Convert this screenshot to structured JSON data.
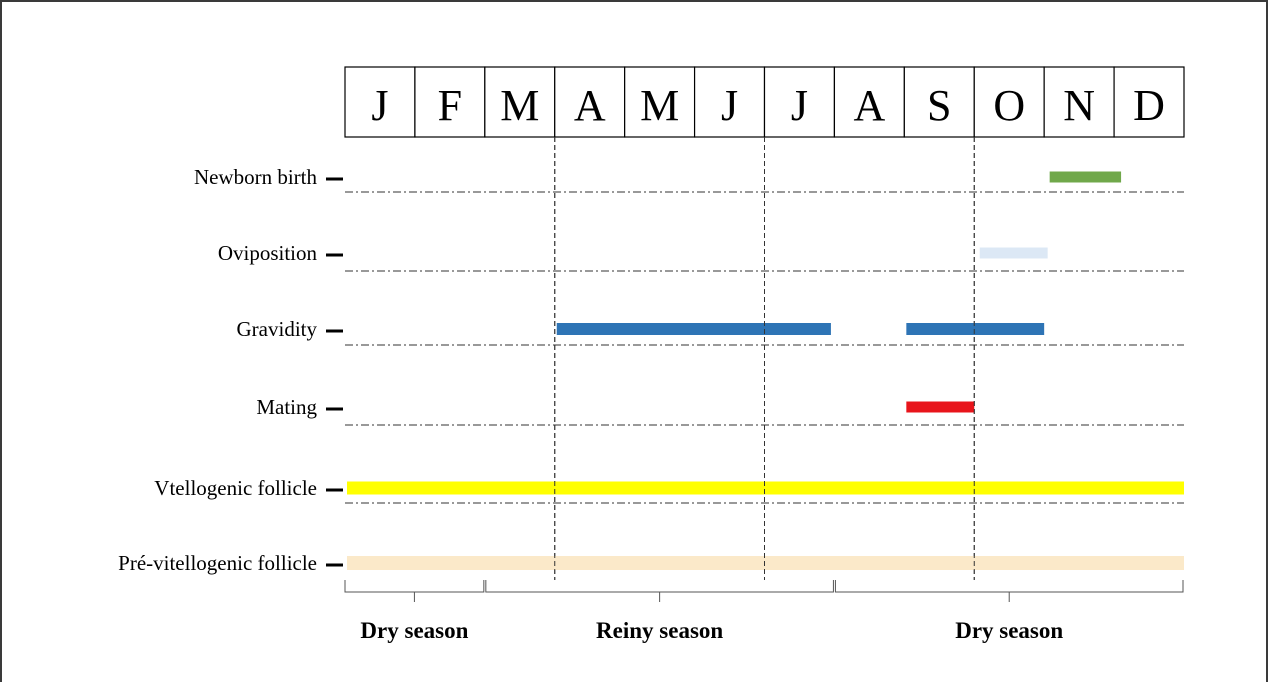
{
  "chart_data": {
    "type": "gantt",
    "months": [
      "J",
      "F",
      "M",
      "A",
      "M",
      "J",
      "J",
      "A",
      "S",
      "O",
      "N",
      "D"
    ],
    "rows": [
      {
        "label": "Newborn birth",
        "bars": [
          {
            "start": 10.05,
            "end": 11.1,
            "color": "#70a84a"
          }
        ]
      },
      {
        "label": "Oviposition",
        "bars": [
          {
            "start": 9.05,
            "end": 10.05,
            "color": "#dce8f5"
          }
        ]
      },
      {
        "label": "Gravidity",
        "bars": [
          {
            "start": 3.0,
            "end": 6.95,
            "color": "#2e74b5"
          },
          {
            "start": 8.0,
            "end": 10.0,
            "color": "#2e74b5"
          }
        ]
      },
      {
        "label": "Mating",
        "bars": [
          {
            "start": 8.0,
            "end": 9.0,
            "color": "#e8141b"
          }
        ]
      },
      {
        "label": "Vtellogenic  follicle",
        "bars": [
          {
            "start": 0.0,
            "end": 12.0,
            "color": "#ffff00"
          }
        ]
      },
      {
        "label": "Pré-vitellogenic  follicle",
        "bars": [
          {
            "start": 0.0,
            "end": 12.0,
            "color": "#fbe9c9"
          }
        ]
      }
    ],
    "dashed_month_boundaries": [
      3,
      6,
      9
    ],
    "seasons": [
      {
        "label": "Dry  season",
        "start": 0,
        "end": 2
      },
      {
        "label": "Reiny  season",
        "start": 2,
        "end": 7
      },
      {
        "label": "Dry  season",
        "start": 7,
        "end": 12
      }
    ],
    "grid": true
  }
}
